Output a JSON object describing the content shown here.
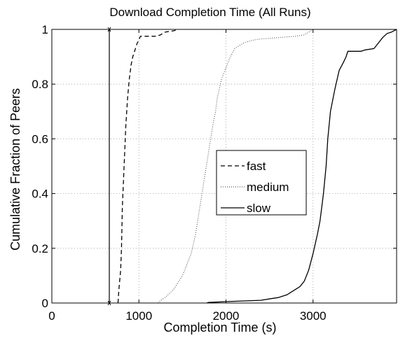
{
  "chart_data": {
    "type": "line",
    "title": "Download Completion Time (All Runs)",
    "xlabel": "Completion Time (s)",
    "ylabel": "Cumulative Fraction of Peers",
    "xlim": [
      0,
      3960
    ],
    "ylim": [
      0,
      1
    ],
    "xticks": [
      0,
      1000,
      2000,
      3000
    ],
    "xtick_labels": [
      "0",
      "1000",
      "2000",
      "3000"
    ],
    "yticks": [
      0,
      0.2,
      0.4,
      0.6,
      0.8,
      1
    ],
    "ytick_labels": [
      "0",
      "0.2",
      "0.4",
      "0.6",
      "0.8",
      "1"
    ],
    "grid": true,
    "legend_position": "center-right",
    "vertical_marker_x": 660,
    "series": [
      {
        "name": "fast",
        "style": "dashed",
        "x": [
          760,
          770,
          790,
          800,
          810,
          830,
          850,
          870,
          890,
          910,
          930,
          960,
          980,
          1000,
          1010,
          1020,
          1040,
          1060,
          1100,
          1200,
          1250,
          1270,
          1300,
          1400,
          1450
        ],
        "y": [
          0,
          0.05,
          0.12,
          0.2,
          0.35,
          0.5,
          0.65,
          0.75,
          0.82,
          0.87,
          0.9,
          0.93,
          0.95,
          0.96,
          0.97,
          0.975,
          0.975,
          0.975,
          0.975,
          0.975,
          0.98,
          0.985,
          0.99,
          0.995,
          1.0
        ]
      },
      {
        "name": "medium",
        "style": "dotted",
        "x": [
          1220,
          1250,
          1300,
          1400,
          1500,
          1600,
          1650,
          1700,
          1750,
          1800,
          1850,
          1880,
          1900,
          1950,
          2000,
          2050,
          2100,
          2200,
          2300,
          2400,
          2600,
          2800,
          2900,
          2950,
          3000
        ],
        "y": [
          0,
          0.01,
          0.02,
          0.05,
          0.1,
          0.18,
          0.25,
          0.35,
          0.45,
          0.55,
          0.65,
          0.7,
          0.75,
          0.82,
          0.86,
          0.9,
          0.93,
          0.95,
          0.96,
          0.965,
          0.97,
          0.975,
          0.98,
          0.99,
          1.0
        ]
      },
      {
        "name": "slow",
        "style": "solid",
        "x": [
          1780,
          1800,
          2000,
          2400,
          2600,
          2700,
          2800,
          2850,
          2900,
          2950,
          3000,
          3050,
          3080,
          3100,
          3120,
          3150,
          3170,
          3200,
          3250,
          3300,
          3350,
          3380,
          3400,
          3450,
          3500,
          3550,
          3600,
          3700,
          3750,
          3800,
          3850,
          3900,
          3960
        ],
        "y": [
          0,
          0.002,
          0.005,
          0.01,
          0.02,
          0.03,
          0.05,
          0.06,
          0.08,
          0.12,
          0.18,
          0.25,
          0.3,
          0.35,
          0.4,
          0.5,
          0.6,
          0.7,
          0.78,
          0.85,
          0.88,
          0.9,
          0.92,
          0.92,
          0.92,
          0.92,
          0.925,
          0.93,
          0.95,
          0.97,
          0.985,
          0.99,
          1.0
        ]
      }
    ]
  }
}
